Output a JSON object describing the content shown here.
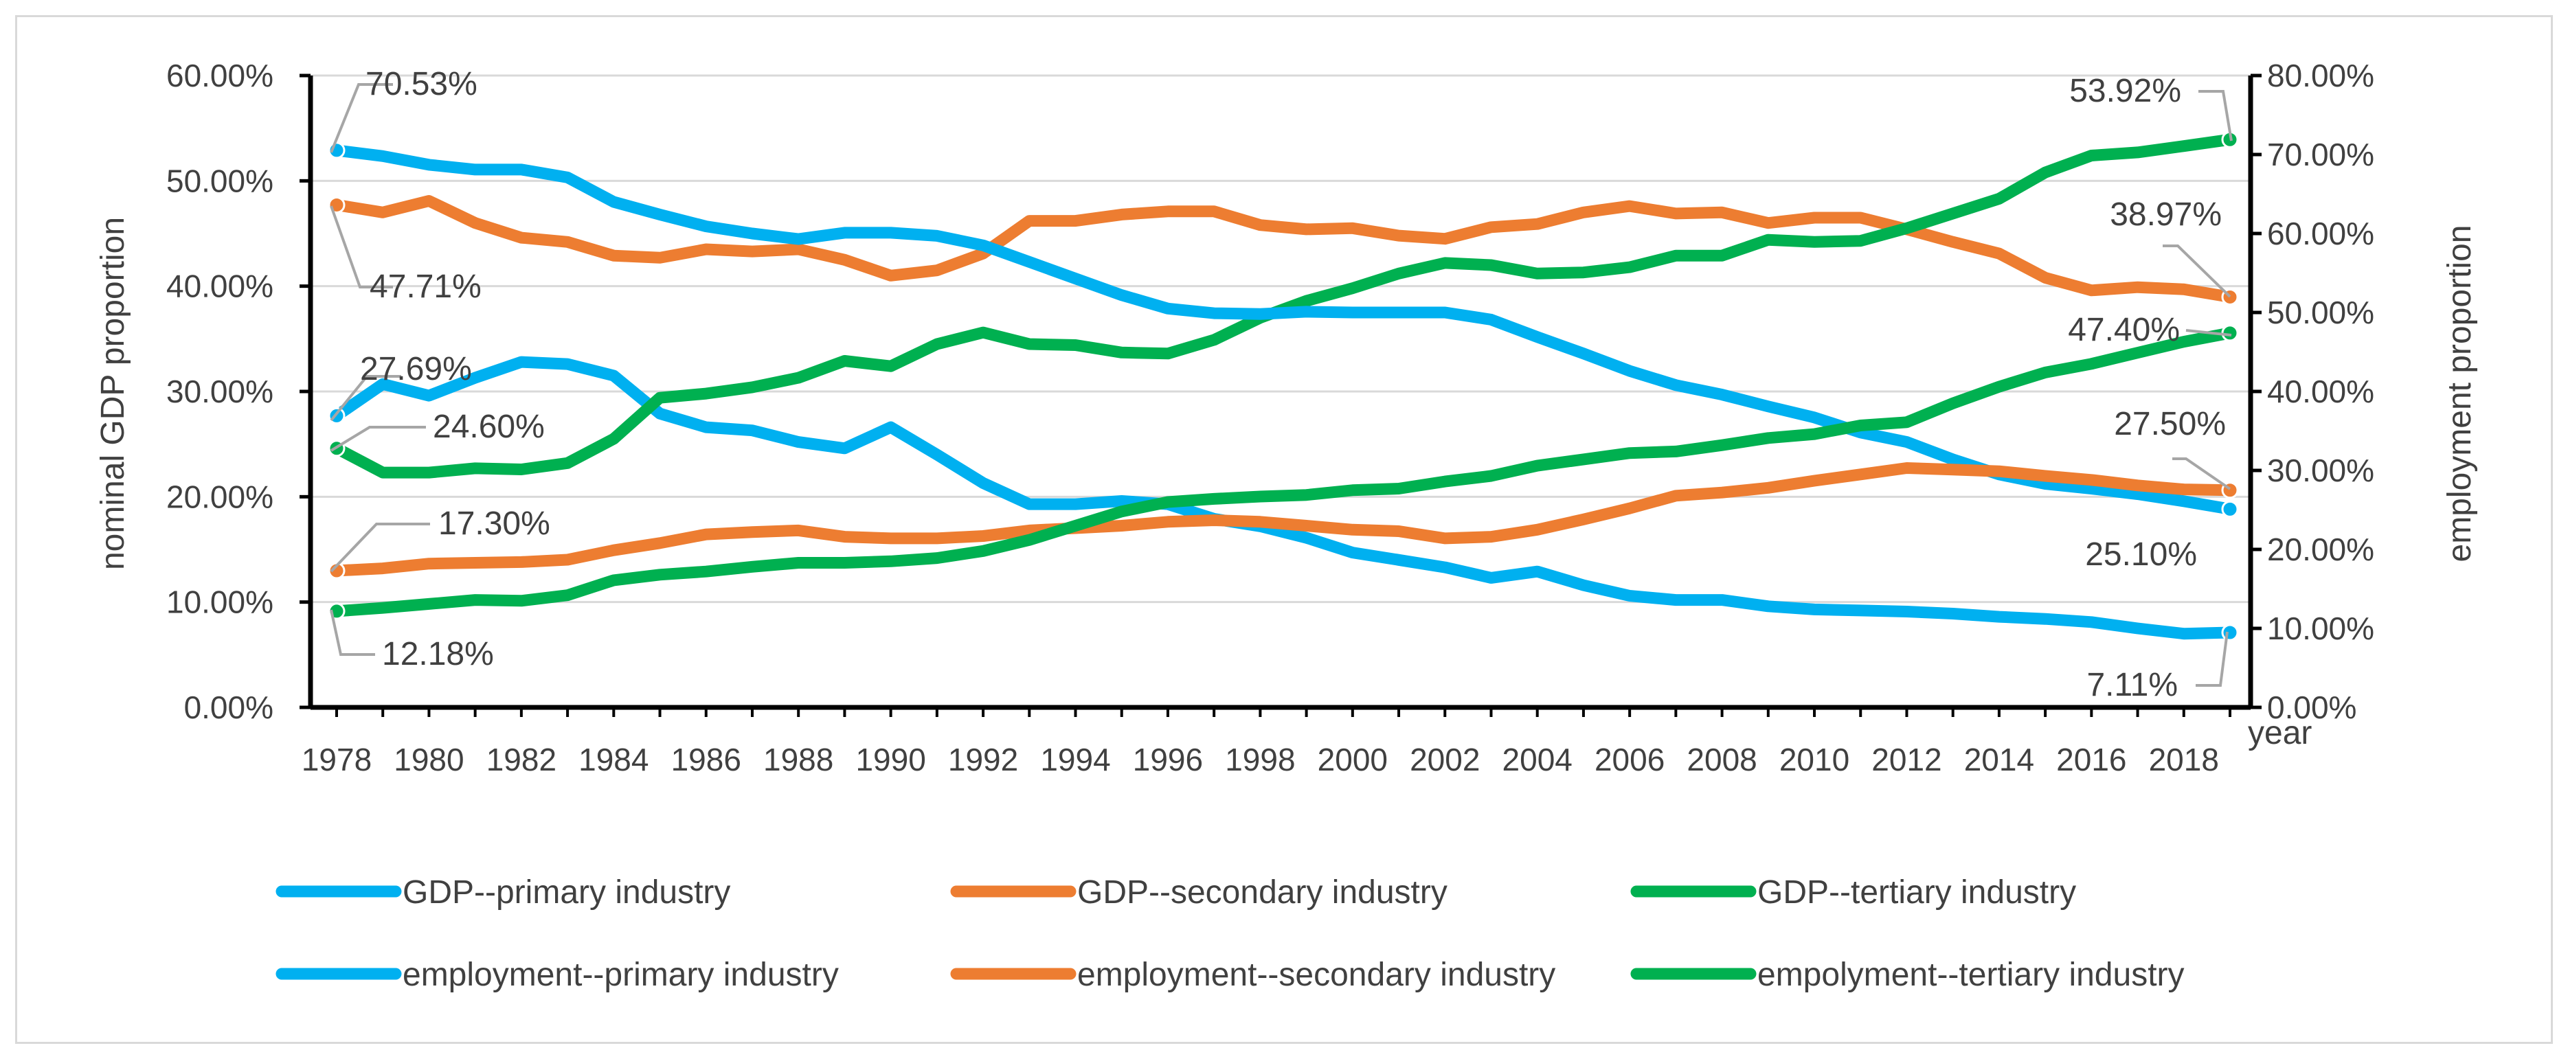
{
  "chart_data": {
    "type": "line",
    "title": "",
    "xlabel": "year",
    "ylabel_left": "nominal GDP proportion",
    "ylabel_right": "employment proportion",
    "ylim_left": [
      0,
      60
    ],
    "ylim_right": [
      0,
      80
    ],
    "grid": true,
    "legend_position": "bottom",
    "x": [
      1978,
      1979,
      1980,
      1981,
      1982,
      1983,
      1984,
      1985,
      1986,
      1987,
      1988,
      1989,
      1990,
      1991,
      1992,
      1993,
      1994,
      1995,
      1996,
      1997,
      1998,
      1999,
      2000,
      2001,
      2002,
      2003,
      2004,
      2005,
      2006,
      2007,
      2008,
      2009,
      2010,
      2011,
      2012,
      2013,
      2014,
      2015,
      2016,
      2017,
      2018,
      2019
    ],
    "x_tick_labels": [
      "1978",
      "1980",
      "1982",
      "1984",
      "1986",
      "1988",
      "1990",
      "1992",
      "1994",
      "1996",
      "1998",
      "2000",
      "2002",
      "2004",
      "2006",
      "2008",
      "2010",
      "2012",
      "2014",
      "2016",
      "2018"
    ],
    "y_left_tick_labels": [
      "0.00%",
      "10.00%",
      "20.00%",
      "30.00%",
      "40.00%",
      "50.00%",
      "60.00%"
    ],
    "y_right_tick_labels": [
      "0.00%",
      "10.00%",
      "20.00%",
      "30.00%",
      "40.00%",
      "50.00%",
      "60.00%",
      "70.00%",
      "80.00%"
    ],
    "series": [
      {
        "name": "GDP--primary industry",
        "axis": "left",
        "color": "#00b0f0",
        "values": [
          27.69,
          30.7,
          29.6,
          31.3,
          32.8,
          32.6,
          31.5,
          27.9,
          26.6,
          26.3,
          25.2,
          24.6,
          26.6,
          24.0,
          21.3,
          19.3,
          19.3,
          19.6,
          19.3,
          17.9,
          17.2,
          16.1,
          14.7,
          14.0,
          13.3,
          12.3,
          12.9,
          11.6,
          10.6,
          10.2,
          10.2,
          9.6,
          9.3,
          9.2,
          9.1,
          8.9,
          8.6,
          8.4,
          8.1,
          7.5,
          7.0,
          7.11
        ]
      },
      {
        "name": "GDP--secondary industry",
        "axis": "left",
        "color": "#ed7d31",
        "values": [
          47.71,
          47.0,
          48.1,
          46.0,
          44.6,
          44.2,
          42.9,
          42.7,
          43.5,
          43.3,
          43.5,
          42.5,
          41.0,
          41.5,
          43.1,
          46.2,
          46.2,
          46.8,
          47.1,
          47.1,
          45.8,
          45.4,
          45.5,
          44.8,
          44.5,
          45.6,
          45.9,
          47.0,
          47.6,
          46.9,
          47.0,
          46.0,
          46.5,
          46.5,
          45.4,
          44.2,
          43.1,
          40.8,
          39.6,
          39.9,
          39.7,
          38.97
        ]
      },
      {
        "name": "GDP--tertiary industry",
        "axis": "left",
        "color": "#00b050",
        "values": [
          24.6,
          22.3,
          22.3,
          22.7,
          22.6,
          23.2,
          25.5,
          29.4,
          29.8,
          30.4,
          31.3,
          32.9,
          32.4,
          34.5,
          35.6,
          34.5,
          34.4,
          33.7,
          33.6,
          34.9,
          37.0,
          38.6,
          39.8,
          41.2,
          42.2,
          42.0,
          41.2,
          41.3,
          41.8,
          42.9,
          42.9,
          44.4,
          44.2,
          44.3,
          45.5,
          46.9,
          48.3,
          50.8,
          52.4,
          52.7,
          53.3,
          53.92
        ]
      },
      {
        "name": "employment--primary industry",
        "axis": "right",
        "color": "#00b0f0",
        "values": [
          70.53,
          69.8,
          68.7,
          68.1,
          68.1,
          67.1,
          64.0,
          62.4,
          60.9,
          60.0,
          59.3,
          60.1,
          60.1,
          59.7,
          58.5,
          56.4,
          54.3,
          52.2,
          50.5,
          49.9,
          49.8,
          50.1,
          50.0,
          50.0,
          50.0,
          49.1,
          46.9,
          44.8,
          42.6,
          40.8,
          39.6,
          38.1,
          36.7,
          34.8,
          33.6,
          31.4,
          29.5,
          28.3,
          27.7,
          27.0,
          26.1,
          25.1
        ]
      },
      {
        "name": "employment--secondary industry",
        "axis": "right",
        "color": "#ed7d31",
        "values": [
          17.3,
          17.6,
          18.2,
          18.3,
          18.4,
          18.7,
          19.9,
          20.8,
          21.9,
          22.2,
          22.4,
          21.6,
          21.4,
          21.4,
          21.7,
          22.4,
          22.7,
          23.0,
          23.5,
          23.7,
          23.5,
          23.0,
          22.5,
          22.3,
          21.4,
          21.6,
          22.5,
          23.8,
          25.2,
          26.8,
          27.2,
          27.8,
          28.7,
          29.5,
          30.3,
          30.1,
          29.9,
          29.3,
          28.8,
          28.1,
          27.6,
          27.5
        ]
      },
      {
        "name": "empolyment--tertiary industry",
        "axis": "right",
        "color": "#00b050",
        "values": [
          12.18,
          12.6,
          13.1,
          13.6,
          13.5,
          14.2,
          16.1,
          16.8,
          17.2,
          17.8,
          18.3,
          18.3,
          18.5,
          18.9,
          19.8,
          21.2,
          23.0,
          24.8,
          26.0,
          26.4,
          26.7,
          26.9,
          27.5,
          27.7,
          28.6,
          29.3,
          30.6,
          31.4,
          32.2,
          32.4,
          33.2,
          34.1,
          34.6,
          35.7,
          36.1,
          38.5,
          40.6,
          42.4,
          43.5,
          44.9,
          46.3,
          47.4
        ]
      }
    ],
    "annotations": [
      {
        "text": "70.53%"
      },
      {
        "text": "47.71%"
      },
      {
        "text": "27.69%"
      },
      {
        "text": "24.60%"
      },
      {
        "text": "17.30%"
      },
      {
        "text": "12.18%"
      },
      {
        "text": "53.92%"
      },
      {
        "text": "38.97%"
      },
      {
        "text": "47.40%"
      },
      {
        "text": "27.50%"
      },
      {
        "text": "25.10%"
      },
      {
        "text": "7.11%"
      }
    ]
  }
}
